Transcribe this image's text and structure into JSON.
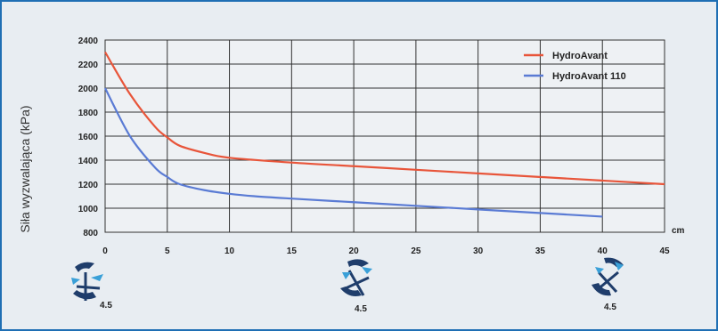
{
  "chart_data": {
    "type": "line",
    "title": "",
    "ylabel": "Siła wyzwalająca (kPa)",
    "xlabel": "cm",
    "xlim": [
      0,
      45
    ],
    "ylim": [
      800,
      2400
    ],
    "x_ticks": [
      "0",
      "5",
      "10",
      "15",
      "20",
      "25",
      "30",
      "35",
      "40",
      "45"
    ],
    "y_ticks": [
      "800",
      "1000",
      "1200",
      "1400",
      "1600",
      "1800",
      "2000",
      "2200",
      "2400"
    ],
    "grid": true,
    "legend_position": "top-right",
    "series": [
      {
        "name": "HydroAvant",
        "color": "#e8553a",
        "x": [
          0,
          2,
          4,
          5,
          6,
          8,
          10,
          15,
          20,
          25,
          30,
          35,
          40,
          45
        ],
        "y": [
          2300,
          1950,
          1680,
          1590,
          1520,
          1460,
          1420,
          1380,
          1350,
          1320,
          1290,
          1260,
          1230,
          1200
        ]
      },
      {
        "name": "HydroAvant 110",
        "color": "#5a7bd4",
        "x": [
          0,
          2,
          4,
          5,
          6,
          8,
          10,
          12,
          15,
          20,
          25,
          30,
          35,
          40
        ],
        "y": [
          2000,
          1600,
          1340,
          1260,
          1200,
          1150,
          1120,
          1100,
          1080,
          1050,
          1020,
          990,
          960,
          930
        ]
      }
    ]
  },
  "icons": {
    "left": "harvester-head-icon",
    "middle": "harvester-head-icon",
    "right": "harvester-head-icon"
  }
}
